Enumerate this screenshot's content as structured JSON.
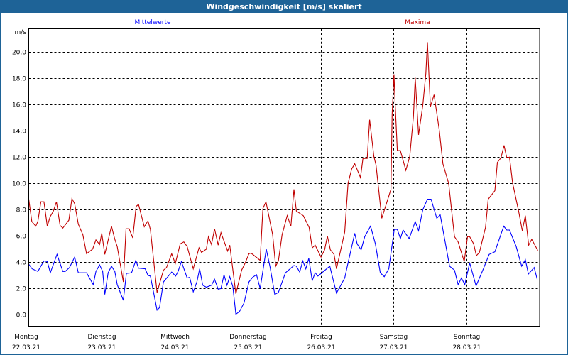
{
  "window": {
    "title": "Windgeschwindigkeit [m/s] skaliert"
  },
  "chart_data": {
    "type": "line",
    "title": "Windgeschwindigkeit [m/s] skaliert",
    "ylabel": "m/s",
    "xlabel": "",
    "xlim": [
      0,
      168
    ],
    "ylim": [
      -0.86,
      21.76
    ],
    "x_unit": "hours since 22.03.21 00:00",
    "yticks": [
      0,
      2,
      4,
      6,
      8,
      10,
      12,
      14,
      16,
      18,
      20
    ],
    "ytick_labels": [
      "0,0",
      "2,0",
      "4,0",
      "6,0",
      "8,0",
      "10,0",
      "12,0",
      "14,0",
      "16,0",
      "18,0",
      "20,0"
    ],
    "xticks": [
      0,
      24,
      48,
      72,
      96,
      120,
      144
    ],
    "xtick_days": [
      "Montag",
      "Dienstag",
      "Mittwoch",
      "Donnerstag",
      "Freitag",
      "Samstag",
      "Sonntag"
    ],
    "xtick_dates": [
      "22.03.21",
      "23.03.21",
      "24.03.21",
      "25.03.21",
      "26.03.21",
      "27.03.21",
      "28.03.21"
    ],
    "grid": true,
    "legend": [
      {
        "name": "Mittelwerte",
        "color": "#0000ff",
        "placement": "top-left"
      },
      {
        "name": "Maxima",
        "color": "#c00000",
        "placement": "top-right"
      }
    ],
    "series": [
      {
        "name": "Mittelwerte",
        "color": "#0000ff",
        "points": [
          [
            0,
            3.85
          ],
          [
            1.1,
            3.5
          ],
          [
            3,
            3.3
          ],
          [
            5,
            4.1
          ],
          [
            6.1,
            4.05
          ],
          [
            7.1,
            3.2
          ],
          [
            9.3,
            4.6
          ],
          [
            11.2,
            3.3
          ],
          [
            12,
            3.3
          ],
          [
            13.4,
            3.6
          ],
          [
            15.1,
            4.4
          ],
          [
            16.3,
            3.2
          ],
          [
            19,
            3.2
          ],
          [
            21.2,
            2.3
          ],
          [
            22.1,
            3.3
          ],
          [
            23.3,
            3.8
          ],
          [
            24.3,
            3.3
          ],
          [
            25,
            1.55
          ],
          [
            26.1,
            3.2
          ],
          [
            27.2,
            3.7
          ],
          [
            28.3,
            3.3
          ],
          [
            29.1,
            2.3
          ],
          [
            31.1,
            1.1
          ],
          [
            32.1,
            3.15
          ],
          [
            33.8,
            3.2
          ],
          [
            35.2,
            4.15
          ],
          [
            36.1,
            3.55
          ],
          [
            38.3,
            3.5
          ],
          [
            39.2,
            3.0
          ],
          [
            40,
            2.95
          ],
          [
            42.2,
            0.35
          ],
          [
            43,
            0.55
          ],
          [
            44.3,
            2.5
          ],
          [
            47,
            3.25
          ],
          [
            48.3,
            2.95
          ],
          [
            49.1,
            3.3
          ],
          [
            50.2,
            4.05
          ],
          [
            52.1,
            2.8
          ],
          [
            52.9,
            2.85
          ],
          [
            54.1,
            1.75
          ],
          [
            55.3,
            2.5
          ],
          [
            56.2,
            3.5
          ],
          [
            57.2,
            2.25
          ],
          [
            58.4,
            2.1
          ],
          [
            60.1,
            2.25
          ],
          [
            61.1,
            2.7
          ],
          [
            62.3,
            1.95
          ],
          [
            63.2,
            2.0
          ],
          [
            64.2,
            3.05
          ],
          [
            65.2,
            2.25
          ],
          [
            66.1,
            2.9
          ],
          [
            67.1,
            2.15
          ],
          [
            68.1,
            0.05
          ],
          [
            69.3,
            0.25
          ],
          [
            70.8,
            0.9
          ],
          [
            72.4,
            2.5
          ],
          [
            73.6,
            2.85
          ],
          [
            74.9,
            3.05
          ],
          [
            76.1,
            2.0
          ],
          [
            78.1,
            5.0
          ],
          [
            79.4,
            3.6
          ],
          [
            80.9,
            1.55
          ],
          [
            82.1,
            1.7
          ],
          [
            84.4,
            3.2
          ],
          [
            87.2,
            3.75
          ],
          [
            88,
            3.7
          ],
          [
            89.1,
            3.25
          ],
          [
            90.1,
            4.1
          ],
          [
            91.1,
            3.5
          ],
          [
            92.1,
            4.3
          ],
          [
            93.2,
            2.6
          ],
          [
            94.2,
            3.2
          ],
          [
            95.1,
            2.95
          ],
          [
            99,
            3.7
          ],
          [
            101.2,
            1.65
          ],
          [
            103.9,
            2.8
          ],
          [
            105,
            3.95
          ],
          [
            107.2,
            6.2
          ],
          [
            108,
            5.4
          ],
          [
            109.3,
            4.95
          ],
          [
            110.5,
            5.95
          ],
          [
            112.4,
            6.75
          ],
          [
            114,
            5.4
          ],
          [
            115.6,
            3.2
          ],
          [
            116.9,
            2.9
          ],
          [
            118.4,
            3.5
          ],
          [
            120.2,
            6.5
          ],
          [
            121.2,
            6.5
          ],
          [
            122.2,
            5.8
          ],
          [
            123.1,
            6.45
          ],
          [
            125.1,
            5.8
          ],
          [
            127.1,
            7.1
          ],
          [
            128.2,
            6.4
          ],
          [
            129.6,
            8.0
          ],
          [
            131.1,
            8.8
          ],
          [
            132.3,
            8.8
          ],
          [
            134.2,
            7.35
          ],
          [
            135.3,
            7.6
          ],
          [
            138.4,
            3.7
          ],
          [
            140,
            3.4
          ],
          [
            141.2,
            2.3
          ],
          [
            142.3,
            2.8
          ],
          [
            143.4,
            2.3
          ],
          [
            145,
            3.95
          ],
          [
            147.1,
            2.2
          ],
          [
            149.5,
            3.5
          ],
          [
            151.4,
            4.6
          ],
          [
            153.3,
            4.8
          ],
          [
            156.2,
            6.75
          ],
          [
            157.2,
            6.45
          ],
          [
            158.1,
            6.45
          ],
          [
            160.3,
            5.2
          ],
          [
            162.1,
            3.7
          ],
          [
            163.3,
            4.2
          ],
          [
            164.3,
            3.1
          ],
          [
            166.2,
            3.6
          ],
          [
            167.2,
            2.7
          ]
        ]
      },
      {
        "name": "Maxima",
        "color": "#c00000",
        "points": [
          [
            0,
            8.8
          ],
          [
            1,
            7.1
          ],
          [
            2.3,
            6.75
          ],
          [
            3,
            7.1
          ],
          [
            4,
            8.6
          ],
          [
            5,
            8.6
          ],
          [
            6.1,
            6.75
          ],
          [
            7,
            7.45
          ],
          [
            8.1,
            7.9
          ],
          [
            9.1,
            8.6
          ],
          [
            10.3,
            6.8
          ],
          [
            11.2,
            6.6
          ],
          [
            13.2,
            7.2
          ],
          [
            14.2,
            8.85
          ],
          [
            15.1,
            8.45
          ],
          [
            16.3,
            6.9
          ],
          [
            17.8,
            6.1
          ],
          [
            19,
            4.65
          ],
          [
            21,
            5.0
          ],
          [
            22.1,
            5.7
          ],
          [
            23.3,
            5.35
          ],
          [
            24,
            6.2
          ],
          [
            25,
            4.6
          ],
          [
            27.2,
            6.75
          ],
          [
            28.3,
            5.75
          ],
          [
            29.1,
            5.2
          ],
          [
            31.1,
            2.5
          ],
          [
            32,
            6.55
          ],
          [
            33,
            6.55
          ],
          [
            34.2,
            5.85
          ],
          [
            35.3,
            8.25
          ],
          [
            36.1,
            8.4
          ],
          [
            38,
            6.7
          ],
          [
            39.2,
            7.15
          ],
          [
            40,
            6.5
          ],
          [
            42.2,
            1.7
          ],
          [
            44.3,
            3.4
          ],
          [
            45.3,
            3.6
          ],
          [
            47,
            4.65
          ],
          [
            48.2,
            3.9
          ],
          [
            49.8,
            5.4
          ],
          [
            51,
            5.55
          ],
          [
            52.1,
            5.2
          ],
          [
            54.1,
            3.5
          ],
          [
            56,
            5.1
          ],
          [
            56.8,
            4.75
          ],
          [
            58.4,
            5.0
          ],
          [
            59.1,
            5.95
          ],
          [
            60.1,
            5.35
          ],
          [
            61.1,
            6.55
          ],
          [
            62.3,
            5.3
          ],
          [
            63.2,
            6.25
          ],
          [
            65.4,
            4.85
          ],
          [
            66.1,
            5.3
          ],
          [
            68.1,
            1.6
          ],
          [
            70,
            3.4
          ],
          [
            71.2,
            3.95
          ],
          [
            72.4,
            4.65
          ],
          [
            73.1,
            4.7
          ],
          [
            76.1,
            4.15
          ],
          [
            77,
            8.1
          ],
          [
            78,
            8.6
          ],
          [
            80.2,
            6.1
          ],
          [
            81.2,
            3.7
          ],
          [
            82.1,
            4.1
          ],
          [
            83.3,
            6.1
          ],
          [
            85,
            7.55
          ],
          [
            86.2,
            6.75
          ],
          [
            87.2,
            9.55
          ],
          [
            88,
            7.9
          ],
          [
            90.3,
            7.55
          ],
          [
            92.2,
            6.65
          ],
          [
            93.2,
            5.1
          ],
          [
            94.2,
            5.3
          ],
          [
            96.1,
            4.4
          ],
          [
            97.3,
            4.95
          ],
          [
            98.2,
            6.0
          ],
          [
            99.2,
            4.95
          ],
          [
            100.4,
            4.6
          ],
          [
            101.2,
            3.5
          ],
          [
            103.9,
            6.3
          ],
          [
            105,
            10.0
          ],
          [
            106.2,
            11.1
          ],
          [
            107.2,
            11.5
          ],
          [
            109.1,
            10.45
          ],
          [
            109.9,
            11.9
          ],
          [
            111.3,
            11.9
          ],
          [
            112.1,
            14.85
          ],
          [
            113.5,
            12.05
          ],
          [
            114.2,
            11.4
          ],
          [
            116.1,
            7.35
          ],
          [
            119.1,
            9.55
          ],
          [
            119.5,
            15.3
          ],
          [
            120.1,
            18.3
          ],
          [
            120.5,
            16.0
          ],
          [
            121.2,
            12.5
          ],
          [
            122.2,
            12.5
          ],
          [
            124,
            11.0
          ],
          [
            125.3,
            12.05
          ],
          [
            126.5,
            15.1
          ],
          [
            127.1,
            18.05
          ],
          [
            128.2,
            13.7
          ],
          [
            129.6,
            15.95
          ],
          [
            130.6,
            18.4
          ],
          [
            131.1,
            20.75
          ],
          [
            132.1,
            15.85
          ],
          [
            133.3,
            16.75
          ],
          [
            135,
            14.05
          ],
          [
            136.2,
            11.5
          ],
          [
            138.1,
            10.0
          ],
          [
            140,
            5.95
          ],
          [
            141.2,
            5.55
          ],
          [
            143.2,
            4.05
          ],
          [
            144.3,
            5.95
          ],
          [
            145,
            5.95
          ],
          [
            146.3,
            5.4
          ],
          [
            147.2,
            4.5
          ],
          [
            148.2,
            4.75
          ],
          [
            150.2,
            6.65
          ],
          [
            151.1,
            8.8
          ],
          [
            153.3,
            9.45
          ],
          [
            154.1,
            11.6
          ],
          [
            155.3,
            11.95
          ],
          [
            156.3,
            12.9
          ],
          [
            157.2,
            11.95
          ],
          [
            158.1,
            12.0
          ],
          [
            159.1,
            10.05
          ],
          [
            161.1,
            7.9
          ],
          [
            162.3,
            6.4
          ],
          [
            163.3,
            7.55
          ],
          [
            164.4,
            5.3
          ],
          [
            165.4,
            5.75
          ],
          [
            167.4,
            4.9
          ]
        ]
      }
    ]
  }
}
